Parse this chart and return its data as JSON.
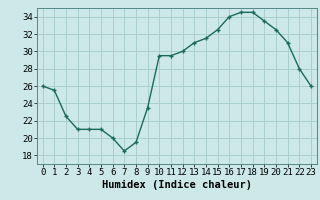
{
  "x": [
    0,
    1,
    2,
    3,
    4,
    5,
    6,
    7,
    8,
    9,
    10,
    11,
    12,
    13,
    14,
    15,
    16,
    17,
    18,
    19,
    20,
    21,
    22,
    23
  ],
  "y": [
    26,
    25.5,
    22.5,
    21,
    21,
    21,
    20,
    18.5,
    19.5,
    23.5,
    29.5,
    29.5,
    30,
    31,
    31.5,
    32.5,
    34,
    34.5,
    34.5,
    33.5,
    32.5,
    31,
    28,
    26
  ],
  "line_color": "#1a6b5a",
  "marker_color": "#1a6b5a",
  "bg_color": "#cce8e8",
  "grid_color": "#aacfcf",
  "xlabel": "Humidex (Indice chaleur)",
  "ylim": [
    17,
    35
  ],
  "xlim": [
    -0.5,
    23.5
  ],
  "yticks": [
    18,
    20,
    22,
    24,
    26,
    28,
    30,
    32,
    34
  ],
  "xticks": [
    0,
    1,
    2,
    3,
    4,
    5,
    6,
    7,
    8,
    9,
    10,
    11,
    12,
    13,
    14,
    15,
    16,
    17,
    18,
    19,
    20,
    21,
    22,
    23
  ],
  "fontsize_label": 7.5,
  "fontsize_tick": 6.5
}
